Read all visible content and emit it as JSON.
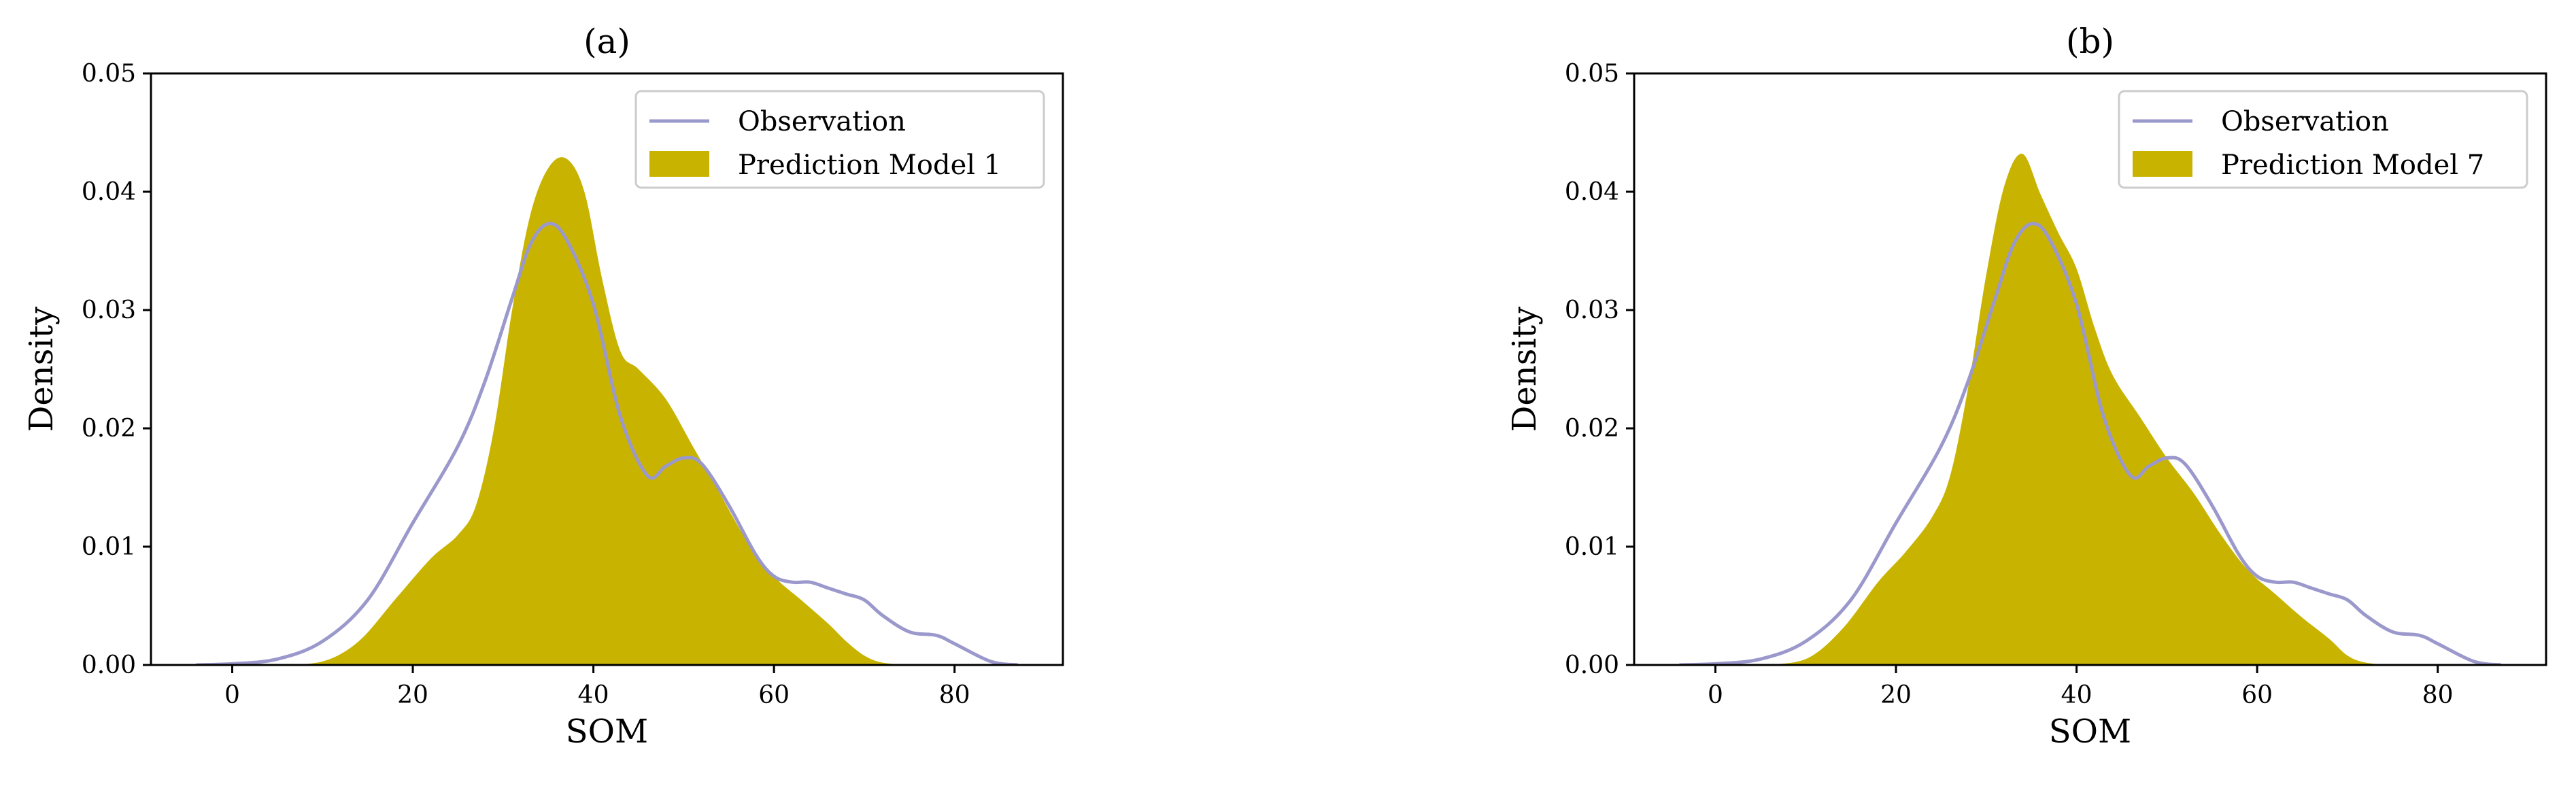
{
  "colors": {
    "observation": "#9b98cc",
    "prediction": "#c8b400",
    "axes": "#000000",
    "background": "#ffffff"
  },
  "chart_data": [
    {
      "type": "area",
      "title": "(a)",
      "xlabel": "SOM",
      "ylabel": "Density",
      "xlim": [
        -9,
        92
      ],
      "ylim": [
        0,
        0.05
      ],
      "xticks": [
        0,
        20,
        40,
        60,
        80
      ],
      "xtick_labels": [
        "0",
        "20",
        "40",
        "60",
        "80"
      ],
      "yticks": [
        0,
        0.01,
        0.02,
        0.03,
        0.04,
        0.05
      ],
      "ytick_labels": [
        "0.00",
        "0.01",
        "0.02",
        "0.03",
        "0.04",
        "0.05"
      ],
      "legend_position": "top-right",
      "series": [
        {
          "name": "Observation",
          "kind": "line",
          "x": [
            -4,
            0,
            5,
            10,
            15,
            20,
            25,
            28,
            31,
            33,
            35,
            37,
            40,
            43,
            46,
            48,
            50,
            52,
            55,
            58,
            60,
            62,
            64,
            66,
            68,
            70,
            72,
            75,
            78,
            80,
            84,
            87
          ],
          "y": [
            0.0,
            0.0001,
            0.0005,
            0.002,
            0.0055,
            0.012,
            0.0185,
            0.024,
            0.031,
            0.0355,
            0.0373,
            0.036,
            0.0305,
            0.021,
            0.016,
            0.0168,
            0.0175,
            0.017,
            0.0135,
            0.0093,
            0.0075,
            0.007,
            0.007,
            0.0065,
            0.006,
            0.0055,
            0.0042,
            0.0028,
            0.0025,
            0.0018,
            0.0003,
            0.0
          ]
        },
        {
          "name": "Prediction Model 1",
          "kind": "area",
          "x": [
            5,
            10,
            14,
            18,
            22,
            25,
            27,
            29,
            31,
            33,
            35,
            37,
            39,
            41,
            43,
            45,
            48,
            51,
            54,
            57,
            60,
            63,
            66,
            68,
            70,
            72,
            75
          ],
          "y": [
            0.0,
            0.0003,
            0.002,
            0.0055,
            0.009,
            0.011,
            0.0135,
            0.02,
            0.03,
            0.038,
            0.042,
            0.0428,
            0.04,
            0.0325,
            0.0265,
            0.025,
            0.0225,
            0.0185,
            0.0145,
            0.0105,
            0.0075,
            0.0055,
            0.0035,
            0.002,
            0.0008,
            0.0002,
            0.0
          ]
        }
      ]
    },
    {
      "type": "area",
      "title": "(b)",
      "xlabel": "SOM",
      "ylabel": "Density",
      "xlim": [
        -9,
        92
      ],
      "ylim": [
        0,
        0.05
      ],
      "xticks": [
        0,
        20,
        40,
        60,
        80
      ],
      "xtick_labels": [
        "0",
        "20",
        "40",
        "60",
        "80"
      ],
      "yticks": [
        0,
        0.01,
        0.02,
        0.03,
        0.04,
        0.05
      ],
      "ytick_labels": [
        "0.00",
        "0.01",
        "0.02",
        "0.03",
        "0.04",
        "0.05"
      ],
      "legend_position": "top-right",
      "series": [
        {
          "name": "Observation",
          "kind": "line",
          "x": [
            -4,
            0,
            5,
            10,
            15,
            20,
            25,
            28,
            31,
            33,
            35,
            37,
            40,
            43,
            46,
            48,
            50,
            52,
            55,
            58,
            60,
            62,
            64,
            66,
            68,
            70,
            72,
            75,
            78,
            80,
            84,
            87
          ],
          "y": [
            0.0,
            0.0001,
            0.0005,
            0.002,
            0.0055,
            0.012,
            0.0185,
            0.024,
            0.031,
            0.0355,
            0.0373,
            0.036,
            0.0305,
            0.021,
            0.016,
            0.0168,
            0.0175,
            0.017,
            0.0135,
            0.0093,
            0.0075,
            0.007,
            0.007,
            0.0065,
            0.006,
            0.0055,
            0.0042,
            0.0028,
            0.0025,
            0.0018,
            0.0003,
            0.0
          ]
        },
        {
          "name": "Prediction Model 7",
          "kind": "area",
          "x": [
            5,
            10,
            14,
            18,
            21,
            24,
            26,
            28,
            30,
            32,
            34,
            36,
            38,
            40,
            42,
            44,
            47,
            50,
            53,
            56,
            59,
            62,
            65,
            68,
            70,
            72,
            75
          ],
          "y": [
            0.0,
            0.0005,
            0.003,
            0.007,
            0.0095,
            0.0125,
            0.016,
            0.0235,
            0.033,
            0.0405,
            0.0432,
            0.0398,
            0.0365,
            0.0335,
            0.0285,
            0.0245,
            0.021,
            0.0175,
            0.0145,
            0.011,
            0.008,
            0.006,
            0.004,
            0.0022,
            0.0008,
            0.0002,
            0.0
          ]
        }
      ]
    }
  ]
}
